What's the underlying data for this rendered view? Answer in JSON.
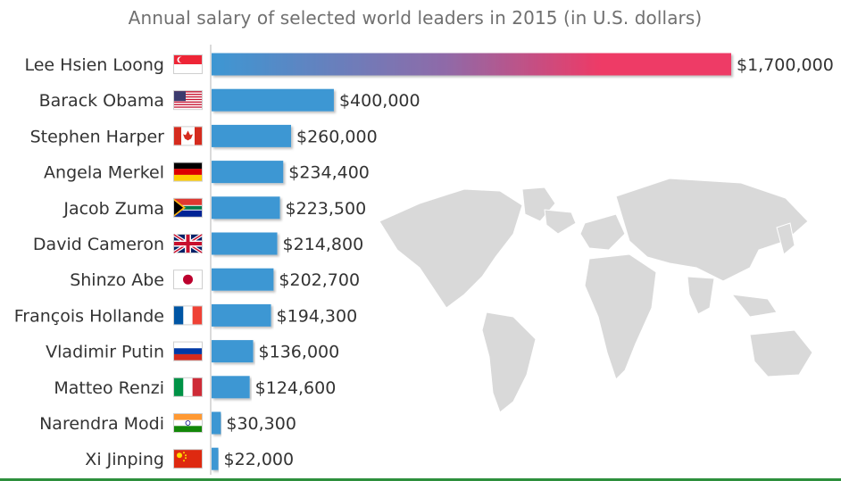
{
  "chart_data": {
    "type": "bar",
    "title": "Annual salary of selected world leaders in 2015 (in U.S. dollars)",
    "orientation": "horizontal",
    "categories": [
      "Lee Hsien Loong",
      "Barack Obama",
      "Stephen Harper",
      "Angela Merkel",
      "Jacob Zuma",
      "David Cameron",
      "Shinzo Abe",
      "François Hollande",
      "Vladimir Putin",
      "Matteo Renzi",
      "Narendra Modi",
      "Xi Jinping"
    ],
    "flags": [
      "singapore-flag",
      "usa-flag",
      "canada-flag",
      "germany-flag",
      "south-africa-flag",
      "uk-flag",
      "japan-flag",
      "france-flag",
      "russia-flag",
      "italy-flag",
      "india-flag",
      "china-flag"
    ],
    "values": [
      1700000,
      400000,
      260000,
      234400,
      223500,
      214800,
      202700,
      194300,
      136000,
      124600,
      30300,
      22000
    ],
    "value_labels": [
      "$1,700,000",
      "$400,000",
      "$260,000",
      "$234,400",
      "$223,500",
      "$214,800",
      "$202,700",
      "$194,300",
      "$136,000",
      "$124,600",
      "$30,300",
      "$22,000"
    ],
    "xlim": [
      0,
      1700000
    ],
    "grid": false,
    "colors": {
      "bar": "#3d97d3",
      "highlight_start": "#3d97d3",
      "highlight_end": "#ee3a66",
      "text": "#333333",
      "title": "#707070",
      "map": "#d9d9d9"
    }
  }
}
